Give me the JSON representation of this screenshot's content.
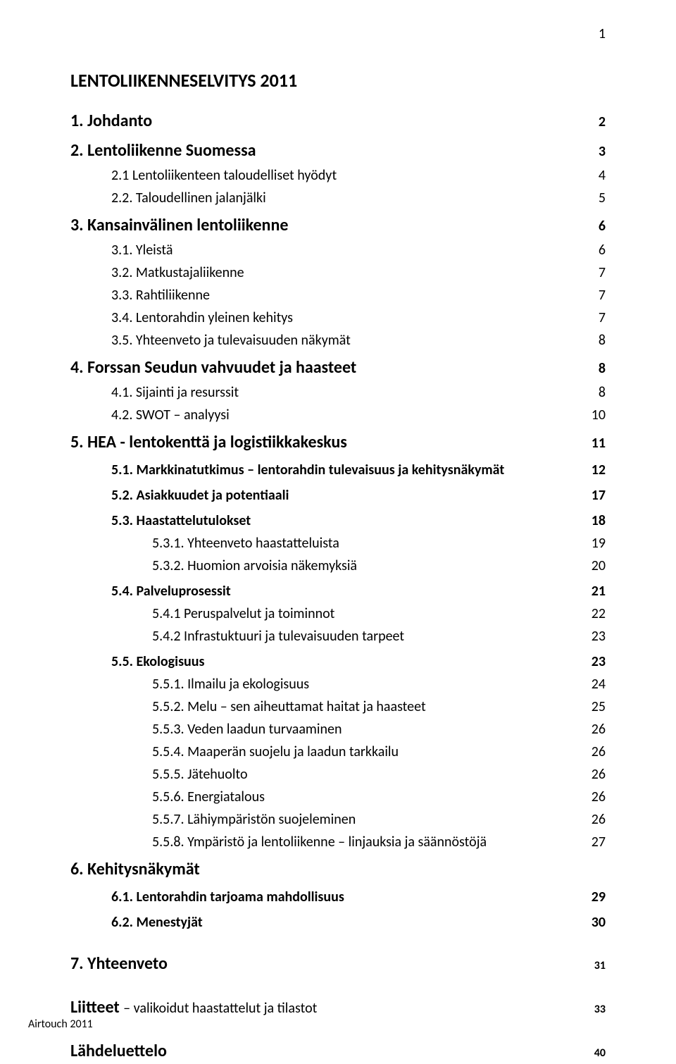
{
  "page_number": "1",
  "doc_title": "LENTOLIIKENNESELVITYS  2011",
  "footer": "Airtouch 2011",
  "typography": {
    "font_family": "Calibri",
    "title_fontsize_pt": 14,
    "h1_fontsize_pt": 13,
    "body_fontsize_pt": 11,
    "text_color": "#000000",
    "background_color": "#ffffff"
  },
  "toc": [
    {
      "level": 1,
      "bold": true,
      "label": "1.    Johdanto",
      "page": "2"
    },
    {
      "level": 1,
      "bold": true,
      "label": "2.    Lentoliikenne Suomessa",
      "page": "3"
    },
    {
      "level": 2,
      "bold": false,
      "label": "2.1 Lentoliikenteen taloudelliset hyödyt",
      "page": "4"
    },
    {
      "level": 2,
      "bold": false,
      "label": "2.2. Taloudellinen jalanjälki",
      "page": "5"
    },
    {
      "level": 1,
      "bold": true,
      "label": "3.    Kansainvälinen lentoliikenne",
      "page": "6"
    },
    {
      "level": 2,
      "bold": false,
      "label": "3.1.   Yleistä",
      "page": "6"
    },
    {
      "level": 2,
      "bold": false,
      "label": "3.2.   Matkustajaliikenne",
      "page": "7"
    },
    {
      "level": 2,
      "bold": false,
      "label": "3.3.   Rahtiliikenne",
      "page": "7"
    },
    {
      "level": 2,
      "bold": false,
      "label": "3.4.   Lentorahdin yleinen kehitys",
      "page": "7"
    },
    {
      "level": 2,
      "bold": false,
      "label": "3.5.   Yhteenveto ja tulevaisuuden näkymät",
      "page": "8"
    },
    {
      "level": 1,
      "bold": true,
      "label": "4.    Forssan Seudun vahvuudet  ja haasteet",
      "page": "8"
    },
    {
      "level": 2,
      "bold": false,
      "label": "4.1.   Sijainti ja resurssit",
      "page": "8"
    },
    {
      "level": 2,
      "bold": false,
      "label": "4.2.   SWOT – analyysi",
      "page": "10"
    },
    {
      "level": 1,
      "bold": true,
      "label": "5.    HEA - lentokenttä ja logistiikkakeskus",
      "page": "11"
    },
    {
      "level": 2,
      "bold": true,
      "label": "5.1.   Markkinatutkimus – lentorahdin tulevaisuus ja kehitysnäkymät",
      "page": "12"
    },
    {
      "level": 2,
      "bold": true,
      "label": "5.2.   Asiakkuudet ja potentiaali",
      "page": "17"
    },
    {
      "level": 2,
      "bold": true,
      "label": "5.3.   Haastattelutulokset",
      "page": "18"
    },
    {
      "level": 3,
      "bold": false,
      "label": "5.3.1. Yhteenveto haastatteluista",
      "page": "19"
    },
    {
      "level": 3,
      "bold": false,
      "label": "5.3.2. Huomion arvoisia näkemyksiä",
      "page": "20"
    },
    {
      "level": 2,
      "bold": true,
      "label": "5.4.   Palveluprosessit",
      "page": "21"
    },
    {
      "level": 3,
      "bold": false,
      "label": "5.4.1 Peruspalvelut ja toiminnot",
      "page": "22"
    },
    {
      "level": 3,
      "bold": false,
      "label": "5.4.2 Infrastuktuuri ja tulevaisuuden tarpeet",
      "page": "23"
    },
    {
      "level": 2,
      "bold": true,
      "label": "5.5.   Ekologisuus",
      "page": "23"
    },
    {
      "level": 3,
      "bold": false,
      "label": "5.5.1. Ilmailu ja ekologisuus",
      "page": "24"
    },
    {
      "level": 3,
      "bold": false,
      "label": "5.5.2. Melu – sen aiheuttamat haitat ja haasteet",
      "page": "25"
    },
    {
      "level": 3,
      "bold": false,
      "label": "5.5.3. Veden laadun turvaaminen",
      "page": "26"
    },
    {
      "level": 3,
      "bold": false,
      "label": "5.5.4. Maaperän suojelu ja laadun tarkkailu",
      "page": "26"
    },
    {
      "level": 3,
      "bold": false,
      "label": "5.5.5. Jätehuolto",
      "page": "26"
    },
    {
      "level": 3,
      "bold": false,
      "label": "5.5.6. Energiatalous",
      "page": "26"
    },
    {
      "level": 3,
      "bold": false,
      "label": "5.5.7. Lähiympäristön suojeleminen",
      "page": "26"
    },
    {
      "level": 3,
      "bold": false,
      "label": "5.5.8. Ympäristö ja lentoliikenne – linjauksia ja säännöstöjä",
      "page": "27"
    },
    {
      "level": 1,
      "bold": true,
      "label": "6.    Kehitysnäkymät",
      "page": ""
    },
    {
      "level": 2,
      "bold": true,
      "label": "6.1.   Lentorahdin tarjoama mahdollisuus",
      "page": "29"
    },
    {
      "level": 2,
      "bold": true,
      "label": "6.2.   Menestyjät",
      "page": "30"
    }
  ],
  "sec7": {
    "label": "7.    Yhteenveto",
    "page": "31"
  },
  "liitteet": {
    "head": "Liitteet ",
    "tail": "– valikoidut haastattelut ja tilastot",
    "page": "33"
  },
  "lahdeluettelo": {
    "label": "Lähdeluettelo",
    "page": "40"
  }
}
